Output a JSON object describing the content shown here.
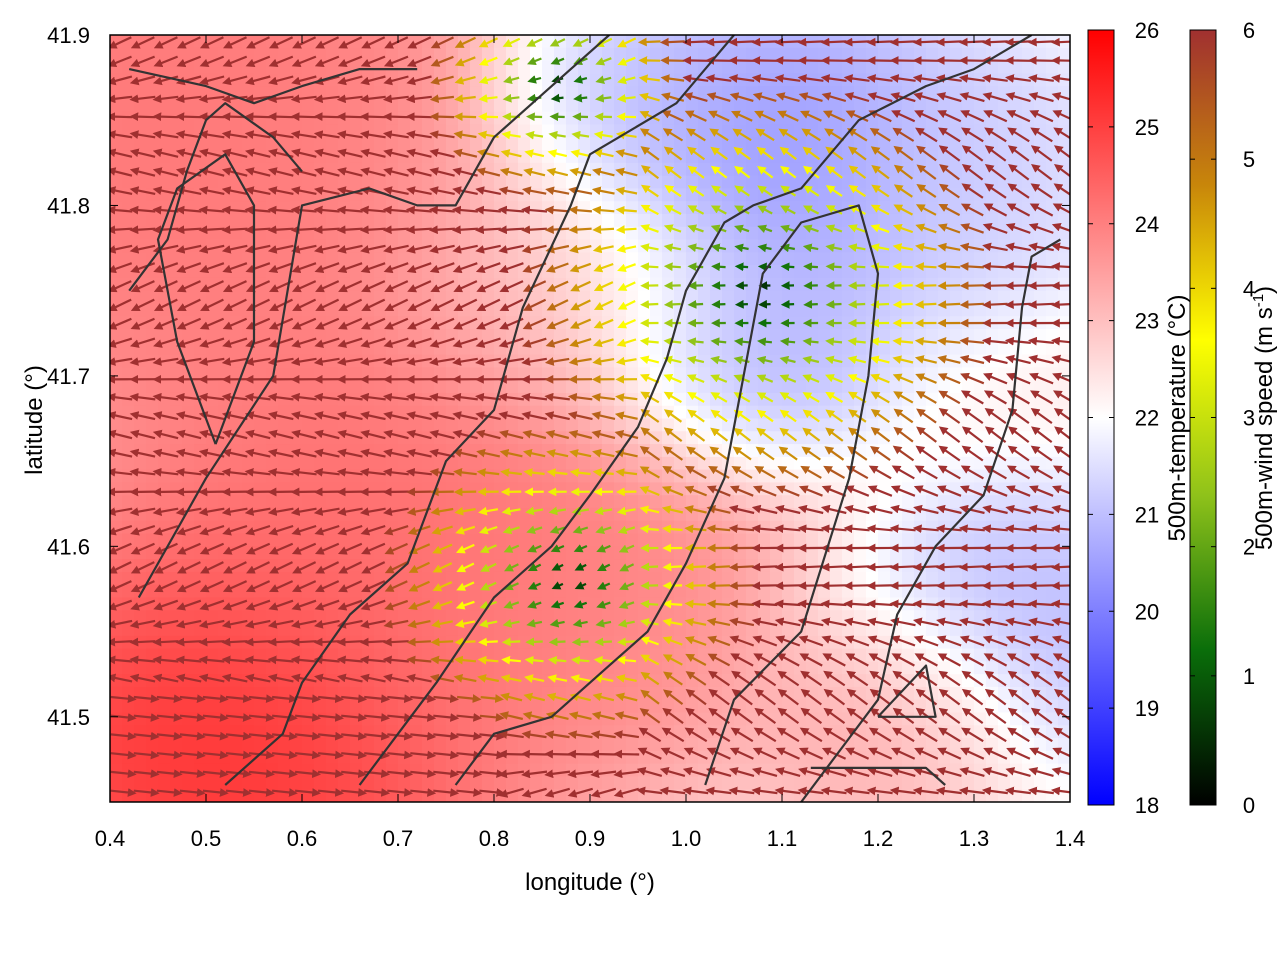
{
  "chart_data": {
    "type": "heatmap",
    "xlabel": "longitude (°)",
    "ylabel": "latitude (°)",
    "xlim": [
      0.4,
      1.4
    ],
    "ylim": [
      41.45,
      41.9
    ],
    "x_ticks": [
      "0.4",
      "0.5",
      "0.6",
      "0.7",
      "0.8",
      "0.9",
      "1.0",
      "1.1",
      "1.2",
      "1.3",
      "1.4"
    ],
    "y_ticks": [
      "41.5",
      "41.6",
      "41.7",
      "41.8",
      "41.9"
    ],
    "temperature_colorbar": {
      "label": "500m-temperature (°C)",
      "range": [
        18,
        26
      ],
      "ticks": [
        "18",
        "19",
        "20",
        "21",
        "22",
        "23",
        "24",
        "25",
        "26"
      ],
      "colors": [
        "#0000ff",
        "#ffffff",
        "#ff0000"
      ]
    },
    "wind_colorbar": {
      "label_main": "500m-wind speed (m s",
      "label_sup": "-1",
      "label_end": ")",
      "range": [
        0,
        6
      ],
      "ticks": [
        "0",
        "1",
        "2",
        "3",
        "4",
        "5",
        "6"
      ],
      "colors": [
        "#000000",
        "#0a6e0a",
        "#8fc21a",
        "#ffff00",
        "#c8860a",
        "#a03030"
      ]
    },
    "temperature_centers": [
      {
        "lon": 0.45,
        "lat": 41.85,
        "temp": 24.5,
        "spread": 0.35
      },
      {
        "lon": 0.52,
        "lat": 41.48,
        "temp": 25.8,
        "spread": 0.22
      },
      {
        "lon": 0.72,
        "lat": 41.62,
        "temp": 24.6,
        "spread": 0.25
      },
      {
        "lon": 0.85,
        "lat": 41.56,
        "temp": 24.0,
        "spread": 0.18
      },
      {
        "lon": 1.08,
        "lat": 41.83,
        "temp": 19.8,
        "spread": 0.18
      },
      {
        "lon": 1.05,
        "lat": 41.71,
        "temp": 20.3,
        "spread": 0.12
      },
      {
        "lon": 0.95,
        "lat": 41.88,
        "temp": 20.8,
        "spread": 0.12
      },
      {
        "lon": 1.35,
        "lat": 41.55,
        "temp": 20.6,
        "spread": 0.15
      },
      {
        "lon": 1.3,
        "lat": 41.82,
        "temp": 21.2,
        "spread": 0.15
      },
      {
        "lon": 1.22,
        "lat": 41.5,
        "temp": 23.6,
        "spread": 0.12
      },
      {
        "lon": 0.88,
        "lat": 41.74,
        "temp": 22.6,
        "spread": 0.15
      }
    ],
    "wind_field_note_free": true,
    "contours": [
      [
        [
          0.42,
          41.88
        ],
        [
          0.5,
          41.87
        ],
        [
          0.55,
          41.86
        ],
        [
          0.6,
          41.87
        ],
        [
          0.66,
          41.88
        ],
        [
          0.72,
          41.88
        ]
      ],
      [
        [
          0.42,
          41.75
        ],
        [
          0.46,
          41.78
        ],
        [
          0.48,
          41.82
        ],
        [
          0.5,
          41.85
        ],
        [
          0.52,
          41.86
        ],
        [
          0.57,
          41.84
        ],
        [
          0.6,
          41.82
        ]
      ],
      [
        [
          0.51,
          41.66
        ],
        [
          0.47,
          41.72
        ],
        [
          0.45,
          41.78
        ],
        [
          0.47,
          41.81
        ],
        [
          0.52,
          41.83
        ],
        [
          0.55,
          41.8
        ],
        [
          0.55,
          41.72
        ],
        [
          0.51,
          41.66
        ]
      ],
      [
        [
          0.43,
          41.57
        ],
        [
          0.5,
          41.64
        ],
        [
          0.57,
          41.7
        ],
        [
          0.6,
          41.8
        ],
        [
          0.67,
          41.81
        ],
        [
          0.72,
          41.8
        ],
        [
          0.76,
          41.8
        ],
        [
          0.8,
          41.84
        ],
        [
          0.84,
          41.86
        ],
        [
          0.88,
          41.88
        ],
        [
          0.92,
          41.9
        ]
      ],
      [
        [
          0.52,
          41.46
        ],
        [
          0.58,
          41.49
        ],
        [
          0.6,
          41.52
        ],
        [
          0.65,
          41.56
        ],
        [
          0.71,
          41.59
        ],
        [
          0.75,
          41.65
        ],
        [
          0.8,
          41.68
        ],
        [
          0.83,
          41.74
        ],
        [
          0.88,
          41.8
        ],
        [
          0.9,
          41.83
        ],
        [
          0.93,
          41.84
        ],
        [
          0.99,
          41.86
        ],
        [
          1.02,
          41.88
        ],
        [
          1.05,
          41.9
        ]
      ],
      [
        [
          0.66,
          41.46
        ],
        [
          0.7,
          41.49
        ],
        [
          0.74,
          41.52
        ],
        [
          0.8,
          41.57
        ],
        [
          0.86,
          41.6
        ],
        [
          0.9,
          41.63
        ],
        [
          0.95,
          41.67
        ],
        [
          0.98,
          41.71
        ],
        [
          1.0,
          41.75
        ],
        [
          1.04,
          41.79
        ],
        [
          1.07,
          41.8
        ],
        [
          1.12,
          41.81
        ],
        [
          1.18,
          41.85
        ],
        [
          1.25,
          41.87
        ],
        [
          1.3,
          41.88
        ],
        [
          1.36,
          41.9
        ]
      ],
      [
        [
          0.76,
          41.46
        ],
        [
          0.8,
          41.49
        ],
        [
          0.86,
          41.5
        ],
        [
          0.92,
          41.53
        ],
        [
          0.96,
          41.55
        ],
        [
          1.0,
          41.59
        ],
        [
          1.04,
          41.64
        ],
        [
          1.06,
          41.7
        ],
        [
          1.08,
          41.76
        ],
        [
          1.12,
          41.79
        ],
        [
          1.18,
          41.8
        ],
        [
          1.2,
          41.76
        ],
        [
          1.19,
          41.7
        ],
        [
          1.17,
          41.64
        ],
        [
          1.12,
          41.55
        ],
        [
          1.05,
          41.51
        ],
        [
          1.02,
          41.46
        ]
      ],
      [
        [
          1.12,
          41.45
        ],
        [
          1.16,
          41.48
        ],
        [
          1.2,
          41.51
        ],
        [
          1.22,
          41.56
        ],
        [
          1.26,
          41.6
        ],
        [
          1.31,
          41.63
        ],
        [
          1.34,
          41.68
        ],
        [
          1.35,
          41.74
        ],
        [
          1.36,
          41.77
        ],
        [
          1.39,
          41.78
        ]
      ],
      [
        [
          1.2,
          41.5
        ],
        [
          1.25,
          41.53
        ],
        [
          1.26,
          41.5
        ],
        [
          1.2,
          41.5
        ]
      ],
      [
        [
          1.13,
          41.47
        ],
        [
          1.18,
          41.47
        ],
        [
          1.25,
          41.47
        ],
        [
          1.27,
          41.46
        ]
      ]
    ]
  }
}
